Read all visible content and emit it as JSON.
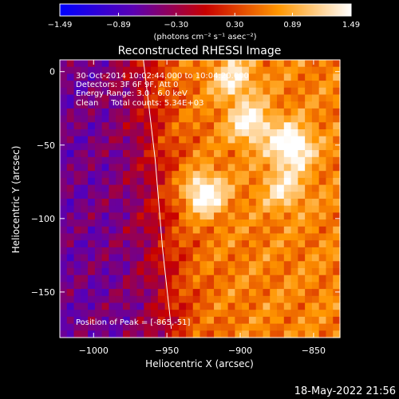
{
  "chart_data": {
    "type": "heatmap",
    "title": "Reconstructed RHESSI Image",
    "xlabel": "Heliocentric X (arcsec)",
    "ylabel": "Heliocentric Y (arcsec)",
    "xlim": [
      -1023,
      -832
    ],
    "ylim": [
      -181,
      8
    ],
    "x_ticks": [
      -1000,
      -950,
      -900,
      -850
    ],
    "y_ticks": [
      0,
      -50,
      -100,
      -150
    ],
    "x_tick_labels": [
      "−1000",
      "−950",
      "−900",
      "−850"
    ],
    "y_tick_labels": [
      "0",
      "−50",
      "−100",
      "−150"
    ],
    "colorbar": {
      "min": -1.49,
      "max": 1.49,
      "tick_values": [
        -1.49,
        -0.89,
        -0.3,
        0.3,
        0.89,
        1.49
      ],
      "tick_labels": [
        "−1.49",
        "−0.89",
        "−0.30",
        "0.30",
        "0.89",
        "1.49"
      ],
      "units": "(photons cm⁻² s⁻¹ asec⁻²)"
    },
    "annotations": [
      "30-Oct-2014 10:02:44.000 to 10:04:20.000",
      "Detectors: 3F 6F 9F, Att 0",
      "Energy Range: 3.0 - 6.0 keV",
      "Clean     Total counts: 5.34E+03"
    ],
    "peak_label": "Position of Peak = [-865,-51]",
    "peaks": [
      {
        "x": -925,
        "y": -83,
        "v": 1.45
      },
      {
        "x": -865,
        "y": -51,
        "v": 1.49
      },
      {
        "x": -893,
        "y": -35,
        "v": 1.2
      },
      {
        "x": -905,
        "y": -5,
        "v": 1.05
      },
      {
        "x": -870,
        "y": -80,
        "v": 0.95
      }
    ],
    "limb_curve": [
      [
        -966,
        8
      ],
      [
        -958,
        -60
      ],
      [
        -953,
        -120
      ],
      [
        -947,
        -175
      ]
    ]
  },
  "footer": {
    "date": "18-May-2022 21:56"
  }
}
